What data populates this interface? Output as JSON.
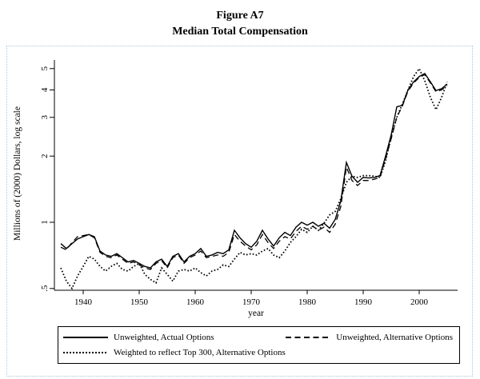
{
  "figure": {
    "title": "Figure A7",
    "subtitle": "Median Total Compensation"
  },
  "chart_data": {
    "type": "line",
    "title": "Figure A7",
    "subtitle": "Median Total Compensation",
    "xlabel": "year",
    "ylabel": "Millions of (2000) Dollars, log scale",
    "y_scale": "log",
    "grid": false,
    "legend_position": "bottom",
    "xlim": [
      1934.5,
      2007
    ],
    "ylim": [
      0.5,
      5.3
    ],
    "x_ticks": [
      1940,
      1950,
      1960,
      1970,
      1980,
      1990,
      2000
    ],
    "y_ticks": [
      {
        "label": "5",
        "value": 5
      },
      {
        "label": "4",
        "value": 4
      },
      {
        "label": "3",
        "value": 3
      },
      {
        "label": "2",
        "value": 2
      },
      {
        "label": "1",
        "value": 1
      },
      {
        "label": ".5",
        "value": 0.5
      }
    ],
    "x": [
      1936,
      1937,
      1938,
      1939,
      1940,
      1941,
      1942,
      1943,
      1944,
      1945,
      1946,
      1947,
      1948,
      1949,
      1950,
      1951,
      1952,
      1953,
      1954,
      1955,
      1956,
      1957,
      1958,
      1959,
      1960,
      1961,
      1962,
      1963,
      1964,
      1965,
      1966,
      1967,
      1968,
      1969,
      1970,
      1971,
      1972,
      1973,
      1974,
      1975,
      1976,
      1977,
      1978,
      1979,
      1980,
      1981,
      1982,
      1983,
      1984,
      1985,
      1986,
      1987,
      1988,
      1989,
      1990,
      1991,
      1992,
      1993,
      1994,
      1995,
      1996,
      1997,
      1998,
      1999,
      2000,
      2001,
      2002,
      2003,
      2004,
      2005
    ],
    "series": [
      {
        "name": "Unweighted, Actual Options",
        "style": "solid",
        "color": "#000000",
        "values": [
          0.8,
          0.76,
          0.8,
          0.84,
          0.86,
          0.88,
          0.86,
          0.74,
          0.71,
          0.7,
          0.72,
          0.69,
          0.66,
          0.67,
          0.65,
          0.63,
          0.62,
          0.66,
          0.68,
          0.63,
          0.7,
          0.72,
          0.66,
          0.7,
          0.72,
          0.76,
          0.7,
          0.71,
          0.73,
          0.72,
          0.75,
          0.92,
          0.85,
          0.8,
          0.77,
          0.82,
          0.92,
          0.84,
          0.78,
          0.85,
          0.9,
          0.87,
          0.95,
          1.0,
          0.97,
          1.0,
          0.96,
          0.99,
          0.94,
          1.03,
          1.25,
          1.87,
          1.62,
          1.52,
          1.6,
          1.59,
          1.6,
          1.63,
          2.0,
          2.5,
          3.35,
          3.4,
          4.0,
          4.35,
          4.6,
          4.75,
          4.35,
          3.97,
          4.05,
          4.25
        ]
      },
      {
        "name": "Unweighted, Alternative Options",
        "style": "dashed",
        "color": "#000000",
        "values": [
          0.77,
          0.75,
          0.81,
          0.86,
          0.87,
          0.88,
          0.85,
          0.73,
          0.7,
          0.69,
          0.71,
          0.68,
          0.65,
          0.66,
          0.64,
          0.62,
          0.61,
          0.65,
          0.67,
          0.62,
          0.69,
          0.71,
          0.65,
          0.69,
          0.71,
          0.74,
          0.69,
          0.7,
          0.71,
          0.7,
          0.73,
          0.88,
          0.82,
          0.78,
          0.75,
          0.79,
          0.88,
          0.81,
          0.76,
          0.82,
          0.86,
          0.84,
          0.91,
          0.96,
          0.93,
          0.96,
          0.92,
          0.95,
          0.9,
          0.98,
          1.18,
          1.78,
          1.55,
          1.47,
          1.55,
          1.55,
          1.57,
          1.6,
          1.95,
          2.4,
          3.0,
          3.38,
          3.95,
          4.3,
          4.55,
          4.7,
          4.3,
          3.92,
          4.0,
          4.18
        ]
      },
      {
        "name": "Weighted to reflect Top 300, Alternative Options",
        "style": "dotted",
        "color": "#000000",
        "values": [
          0.62,
          0.54,
          0.5,
          0.57,
          0.63,
          0.7,
          0.68,
          0.63,
          0.6,
          0.63,
          0.65,
          0.61,
          0.6,
          0.63,
          0.65,
          0.58,
          0.55,
          0.53,
          0.62,
          0.58,
          0.54,
          0.6,
          0.61,
          0.6,
          0.62,
          0.59,
          0.57,
          0.6,
          0.61,
          0.64,
          0.63,
          0.68,
          0.73,
          0.71,
          0.72,
          0.71,
          0.74,
          0.76,
          0.71,
          0.69,
          0.74,
          0.81,
          0.86,
          0.93,
          0.9,
          0.96,
          0.92,
          0.99,
          1.08,
          1.12,
          1.28,
          1.52,
          1.62,
          1.6,
          1.63,
          1.63,
          1.62,
          1.6,
          1.9,
          2.45,
          3.0,
          3.45,
          4.0,
          4.6,
          5.0,
          4.4,
          3.7,
          3.25,
          3.7,
          4.35
        ]
      }
    ]
  },
  "legend": {
    "items": [
      {
        "label": "Unweighted, Actual Options",
        "style": "solid"
      },
      {
        "label": "Unweighted, Alternative Options",
        "style": "dashed"
      },
      {
        "label": "Weighted to reflect Top 300, Alternative Options",
        "style": "dotted"
      }
    ]
  },
  "colors": {
    "line": "#000000",
    "selection_border": "#a9c8d8",
    "background": "#ffffff"
  }
}
